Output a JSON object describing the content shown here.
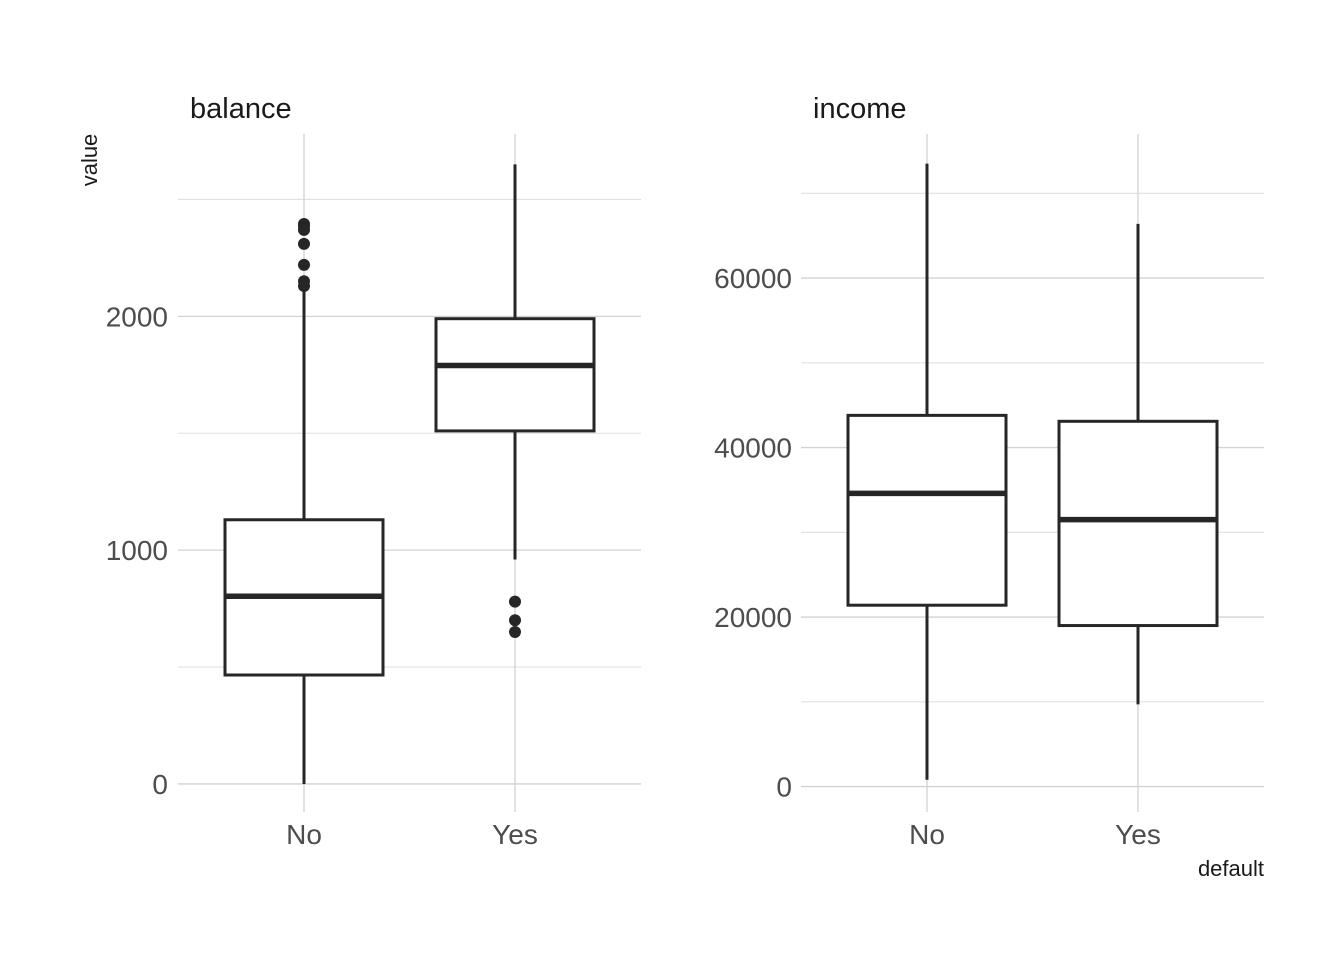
{
  "chart_data": {
    "type": "box",
    "x_label": "default",
    "y_label": "value",
    "categories": [
      "No",
      "Yes"
    ],
    "panels": [
      {
        "title": "balance",
        "ylim": [
          -120,
          2780
        ],
        "y_ticks": [
          0,
          1000,
          2000
        ],
        "y_minor": [
          500,
          1500,
          2500
        ],
        "boxes": [
          {
            "category": "No",
            "lower_whisker": 0,
            "q1": 466,
            "median": 803,
            "q3": 1130,
            "upper_whisker": 2110,
            "outliers": [
              2130,
              2150,
              2220,
              2310,
              2370,
              2385,
              2395
            ]
          },
          {
            "category": "Yes",
            "lower_whisker": 960,
            "q1": 1510,
            "median": 1790,
            "q3": 1990,
            "upper_whisker": 2650,
            "outliers": [
              650,
              700,
              780
            ]
          }
        ]
      },
      {
        "title": "income",
        "ylim": [
          -3000,
          77000
        ],
        "y_ticks": [
          0,
          20000,
          40000,
          60000
        ],
        "y_minor": [
          10000,
          30000,
          50000,
          70000
        ],
        "boxes": [
          {
            "category": "No",
            "lower_whisker": 800,
            "q1": 21400,
            "median": 34600,
            "q3": 43800,
            "upper_whisker": 73500,
            "outliers": []
          },
          {
            "category": "Yes",
            "lower_whisker": 9700,
            "q1": 19000,
            "median": 31500,
            "q3": 43100,
            "upper_whisker": 66400,
            "outliers": []
          }
        ]
      }
    ]
  }
}
